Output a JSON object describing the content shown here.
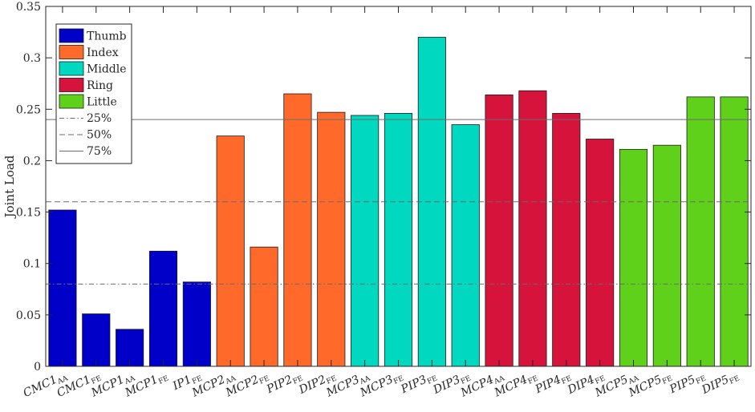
{
  "chart_data": {
    "type": "bar",
    "ylabel": "Joint Load",
    "xlabel": "",
    "title": "",
    "ylim": [
      0,
      0.35
    ],
    "yticks": [
      "0",
      "0.05",
      "0.1",
      "0.15",
      "0.2",
      "0.25",
      "0.3",
      "0.35"
    ],
    "grid": false,
    "legend_position": "top-left",
    "categories": [
      {
        "base": "CMC1",
        "sub": "AA",
        "group": "Thumb"
      },
      {
        "base": "CMC1",
        "sub": "FE",
        "group": "Thumb"
      },
      {
        "base": "MCP1",
        "sub": "AA",
        "group": "Thumb"
      },
      {
        "base": "MCP1",
        "sub": "FE",
        "group": "Thumb"
      },
      {
        "base": "IP1",
        "sub": "FE",
        "group": "Thumb"
      },
      {
        "base": "MCP2",
        "sub": "AA",
        "group": "Index"
      },
      {
        "base": "MCP2",
        "sub": "FE",
        "group": "Index"
      },
      {
        "base": "PIP2",
        "sub": "FE",
        "group": "Index"
      },
      {
        "base": "DIP2",
        "sub": "FE",
        "group": "Index"
      },
      {
        "base": "MCP3",
        "sub": "AA",
        "group": "Middle"
      },
      {
        "base": "MCP3",
        "sub": "FE",
        "group": "Middle"
      },
      {
        "base": "PIP3",
        "sub": "FE",
        "group": "Middle"
      },
      {
        "base": "DIP3",
        "sub": "FE",
        "group": "Middle"
      },
      {
        "base": "MCP4",
        "sub": "AA",
        "group": "Ring"
      },
      {
        "base": "MCP4",
        "sub": "FE",
        "group": "Ring"
      },
      {
        "base": "PIP4",
        "sub": "FE",
        "group": "Ring"
      },
      {
        "base": "DIP4",
        "sub": "FE",
        "group": "Ring"
      },
      {
        "base": "MCP5",
        "sub": "AA",
        "group": "Little"
      },
      {
        "base": "MCP5",
        "sub": "FE",
        "group": "Little"
      },
      {
        "base": "PIP5",
        "sub": "FE",
        "group": "Little"
      },
      {
        "base": "DIP5",
        "sub": "FE",
        "group": "Little"
      }
    ],
    "values": [
      0.152,
      0.051,
      0.036,
      0.112,
      0.082,
      0.224,
      0.116,
      0.265,
      0.247,
      0.244,
      0.246,
      0.32,
      0.235,
      0.264,
      0.268,
      0.246,
      0.221,
      0.211,
      0.215,
      0.262,
      0.262
    ],
    "groups": [
      {
        "name": "Thumb",
        "color": "#0000c8"
      },
      {
        "name": "Index",
        "color": "#ff6a2a"
      },
      {
        "name": "Middle",
        "color": "#00d9c0"
      },
      {
        "name": "Ring",
        "color": "#d6133a"
      },
      {
        "name": "Little",
        "color": "#5fd11a"
      }
    ],
    "reference_lines": [
      {
        "name": "25%",
        "value": 0.08,
        "style": "dash-dot"
      },
      {
        "name": "50%",
        "value": 0.16,
        "style": "dashed"
      },
      {
        "name": "75%",
        "value": 0.24,
        "style": "solid"
      }
    ]
  }
}
